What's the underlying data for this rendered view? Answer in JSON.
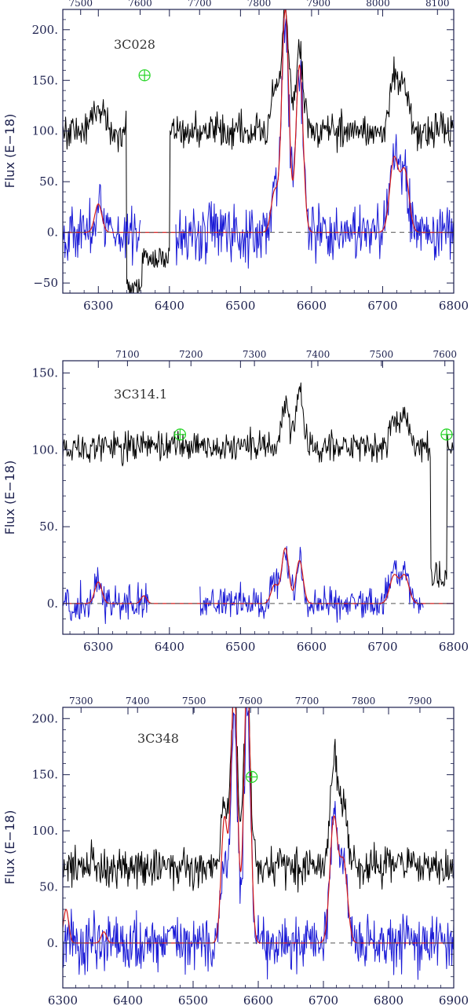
{
  "chart_data": [
    {
      "type": "line",
      "object": "3C028",
      "ylabel": "Flux (E−18)",
      "xlim": [
        6250,
        6800
      ],
      "ylim": [
        -60,
        220
      ],
      "xticks_bottom": [
        6300,
        6400,
        6500,
        6600,
        6700,
        6800
      ],
      "xtick_labels_bottom": [
        "6300",
        "6400",
        "6500",
        "6600",
        "6700",
        "6800"
      ],
      "top_axis": {
        "rest_to_obs": 1.1952,
        "ticks": [
          "7500",
          "7600",
          "7700",
          "7800",
          "7900",
          "8000",
          "8100"
        ]
      },
      "yticks": [
        -50,
        0,
        50,
        100,
        150,
        200
      ],
      "ytick_labels": [
        "−50",
        "0.",
        "50.",
        "100.",
        "150.",
        "200."
      ],
      "telluric_marker": {
        "x": 6365,
        "y": 155
      },
      "series": [
        {
          "name": "observed spectrum",
          "color": "#000000",
          "baseline": 100,
          "noise": 12,
          "dropouts": [
            [
              6340,
              6362,
              -55
            ],
            [
              6362,
              6400,
              -25
            ]
          ],
          "lines": [
            [
              6300,
              25,
              8
            ],
            [
              6548,
              40,
              5
            ],
            [
              6563,
              120,
              5
            ],
            [
              6583,
              80,
              5
            ],
            [
              6716,
              55,
              6
            ],
            [
              6731,
              45,
              6
            ]
          ]
        },
        {
          "name": "residual spectrum",
          "color": "#1a1ad6",
          "baseline": 0,
          "noise": 20,
          "gaps": [
            [
              6360,
              6408
            ]
          ],
          "lines": [
            [
              6300,
              30,
              5
            ],
            [
              6548,
              40,
              5
            ],
            [
              6563,
              210,
              5
            ],
            [
              6583,
              160,
              5
            ],
            [
              6716,
              75,
              6
            ],
            [
              6731,
              60,
              6
            ]
          ]
        },
        {
          "name": "model fit",
          "color": "#d41a1a",
          "baseline": 0,
          "noise": 0,
          "lines": [
            [
              6300,
              28,
              5
            ],
            [
              6548,
              40,
              5
            ],
            [
              6563,
              220,
              5
            ],
            [
              6583,
              165,
              5
            ],
            [
              6716,
              72,
              6
            ],
            [
              6731,
              60,
              6
            ]
          ]
        },
        {
          "name": "zero level",
          "color": "#555555",
          "dashed": true,
          "value": 0
        }
      ]
    },
    {
      "type": "line",
      "object": "3C314.1",
      "ylabel": "Flux (E−18)",
      "xlim": [
        6250,
        6800
      ],
      "ylim": [
        -20,
        158
      ],
      "xticks_bottom": [
        6300,
        6400,
        6500,
        6600,
        6700,
        6800
      ],
      "xtick_labels_bottom": [
        "6300",
        "6400",
        "6500",
        "6600",
        "6700",
        "6800"
      ],
      "top_axis": {
        "rest_to_obs": 1.1197,
        "ticks": [
          "7100",
          "7200",
          "7300",
          "7400",
          "7500",
          "7600"
        ]
      },
      "yticks": [
        0,
        50,
        100,
        150
      ],
      "ytick_labels": [
        "0.",
        "50.",
        "100.",
        "150."
      ],
      "telluric_marker": {
        "x": 6415,
        "y": 110
      },
      "telluric_marker_2": {
        "x": 6790,
        "y": 110
      },
      "series": [
        {
          "name": "observed spectrum",
          "color": "#000000",
          "baseline": 102,
          "noise": 7,
          "dropouts": [
            [
              6768,
              6790,
              20
            ]
          ],
          "lines": [
            [
              6563,
              25,
              5
            ],
            [
              6583,
              35,
              5
            ],
            [
              6716,
              15,
              6
            ],
            [
              6731,
              20,
              6
            ]
          ]
        },
        {
          "name": "residual spectrum",
          "color": "#1a1ad6",
          "baseline": 0,
          "noise": 8,
          "gaps": [
            [
              6372,
              6442
            ],
            [
              6758,
              6800
            ]
          ],
          "lines": [
            [
              6300,
              15,
              5
            ],
            [
              6548,
              15,
              5
            ],
            [
              6563,
              35,
              5
            ],
            [
              6583,
              30,
              5
            ],
            [
              6716,
              20,
              6
            ],
            [
              6731,
              22,
              6
            ]
          ]
        },
        {
          "name": "model fit",
          "color": "#d41a1a",
          "baseline": 0,
          "noise": 0,
          "lines": [
            [
              6300,
              14,
              5
            ],
            [
              6364,
              5,
              4
            ],
            [
              6548,
              12,
              5
            ],
            [
              6563,
              36,
              5
            ],
            [
              6583,
              28,
              5
            ],
            [
              6716,
              18,
              6
            ],
            [
              6731,
              18,
              6
            ]
          ]
        },
        {
          "name": "zero level",
          "color": "#555555",
          "dashed": true,
          "value": 0
        }
      ]
    },
    {
      "type": "line",
      "object": "3C348",
      "ylabel": "Flux (E−18)",
      "xlim": [
        6300,
        6900
      ],
      "ylim": [
        -40,
        210
      ],
      "xticks_bottom": [
        6300,
        6400,
        6500,
        6600,
        6700,
        6800,
        6900
      ],
      "xtick_labels_bottom": [
        "6300",
        "6400",
        "6500",
        "6600",
        "6700",
        "6800",
        "6900"
      ],
      "top_axis": {
        "rest_to_obs": 1.1536,
        "ticks": [
          "7300",
          "7400",
          "7500",
          "7600",
          "7700",
          "7800",
          "7900"
        ]
      },
      "yticks": [
        0,
        50,
        100,
        150,
        200
      ],
      "ytick_labels": [
        "0.",
        "50.",
        "100.",
        "150.",
        "200."
      ],
      "telluric_marker": {
        "x": 6590,
        "y": 148
      },
      "series": [
        {
          "name": "observed spectrum",
          "color": "#000000",
          "baseline": 68,
          "noise": 12,
          "lines": [
            [
              6548,
              50,
              5
            ],
            [
              6563,
              160,
              5
            ],
            [
              6583,
              160,
              5
            ],
            [
              6716,
              90,
              6
            ],
            [
              6731,
              60,
              6
            ]
          ]
        },
        {
          "name": "residual spectrum",
          "color": "#1a1ad6",
          "baseline": 0,
          "noise": 18,
          "lines": [
            [
              6548,
              70,
              5
            ],
            [
              6563,
              200,
              5
            ],
            [
              6583,
              210,
              5
            ],
            [
              6716,
              110,
              6
            ],
            [
              6731,
              70,
              6
            ]
          ]
        },
        {
          "name": "model fit",
          "color": "#d41a1a",
          "baseline": 0,
          "noise": 0,
          "lines": [
            [
              6305,
              30,
              4
            ],
            [
              6363,
              10,
              4
            ],
            [
              6548,
              110,
              5
            ],
            [
              6563,
              230,
              5
            ],
            [
              6583,
              240,
              5
            ],
            [
              6716,
              110,
              6
            ],
            [
              6731,
              70,
              6
            ]
          ]
        },
        {
          "name": "zero level",
          "color": "#555555",
          "dashed": true,
          "value": 0
        }
      ]
    }
  ]
}
